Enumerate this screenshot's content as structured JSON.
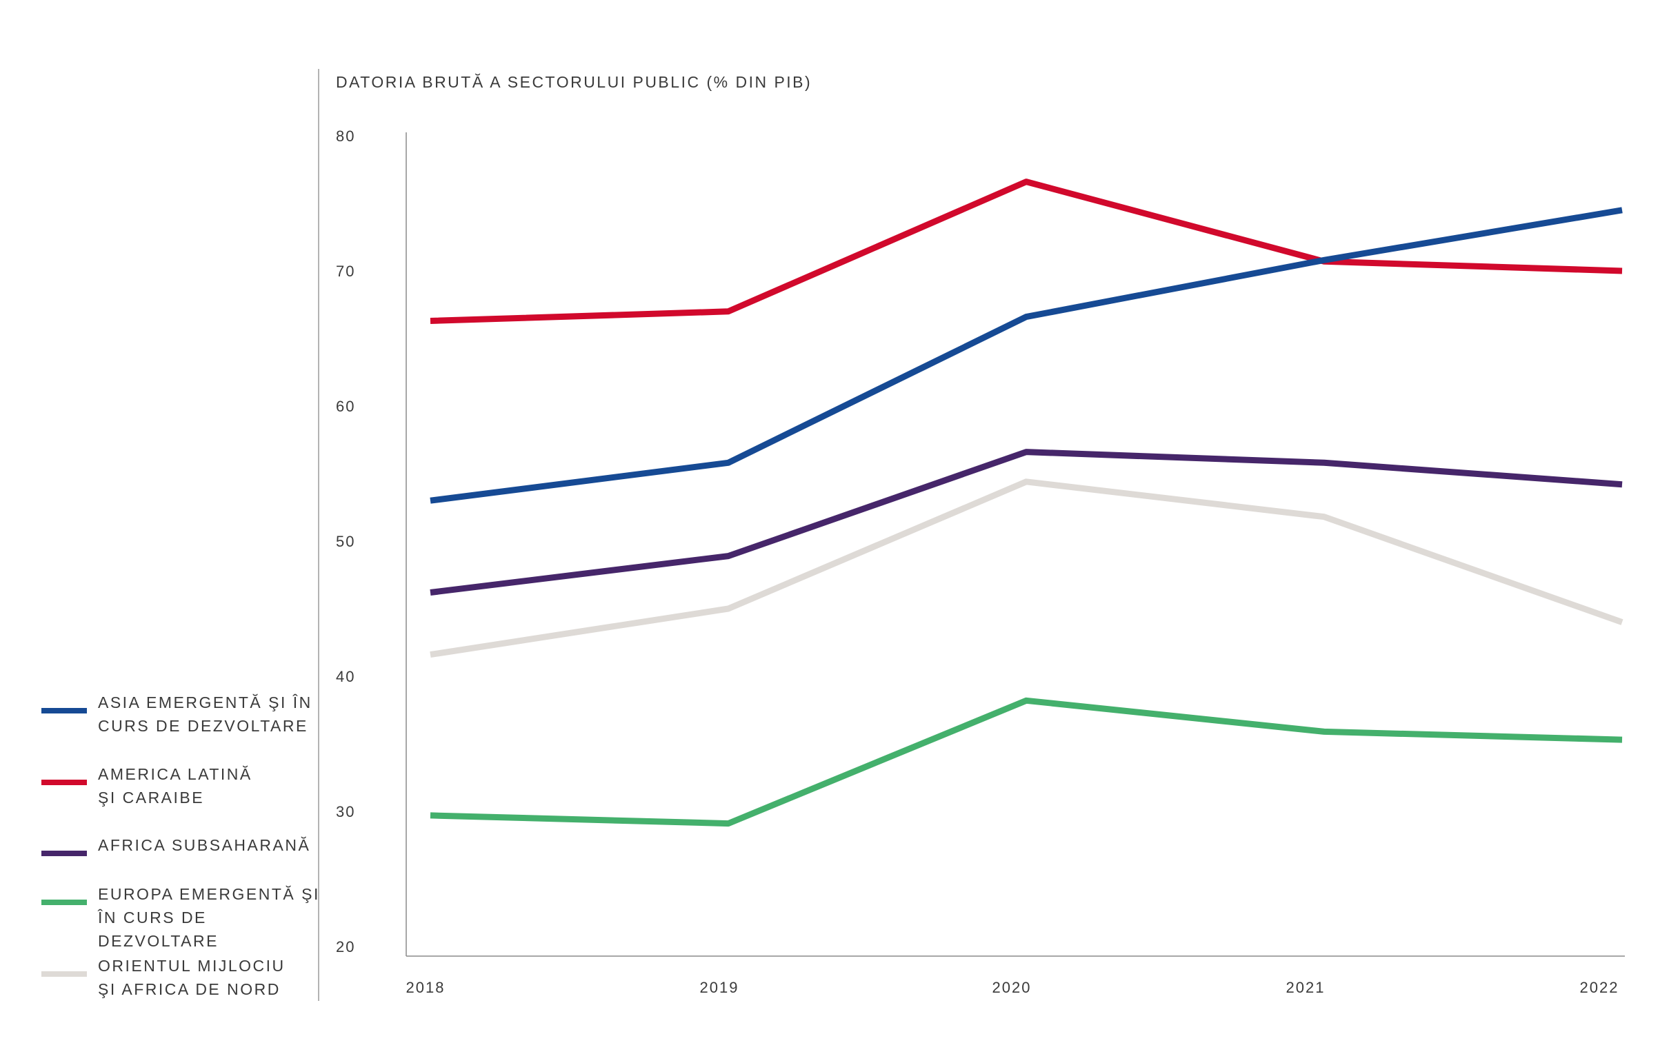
{
  "chart_data": {
    "type": "line",
    "title": "DATORIA BRUTĂ A SECTORULUI PUBLIC (% DIN PIB)",
    "xlabel": "",
    "ylabel": "",
    "x": [
      "2018",
      "2019",
      "2020",
      "2021",
      "2022"
    ],
    "ylim": [
      20,
      80
    ],
    "yticks": [
      "20",
      "30",
      "40",
      "50",
      "60",
      "70",
      "80"
    ],
    "grid": false,
    "legend_position": "left",
    "series": [
      {
        "name": "ASIA EMERGENTĂ ŞI ÎN\nCURS DE DEZVOLTARE",
        "color": "#164a94",
        "values": [
          53.0,
          55.8,
          66.6,
          70.8,
          74.5
        ]
      },
      {
        "name": "AMERICA LATINĂ\nŞI CARAIBE",
        "color": "#d1092c",
        "values": [
          66.3,
          67.0,
          76.6,
          70.7,
          70.0
        ]
      },
      {
        "name": "AFRICA SUBSAHARANĂ",
        "color": "#46266a",
        "values": [
          46.2,
          48.9,
          56.6,
          55.8,
          54.2
        ]
      },
      {
        "name": "EUROPA EMERGENTĂ ŞI\nÎN CURS DE DEZVOLTARE",
        "color": "#44b06c",
        "values": [
          29.7,
          29.1,
          38.2,
          35.9,
          35.3
        ]
      },
      {
        "name": "ORIENTUL MIJLOCIU\nŞI AFRICA DE NORD",
        "color": "#dedad6",
        "values": [
          41.6,
          45.0,
          54.4,
          51.8,
          44.0
        ]
      }
    ]
  }
}
